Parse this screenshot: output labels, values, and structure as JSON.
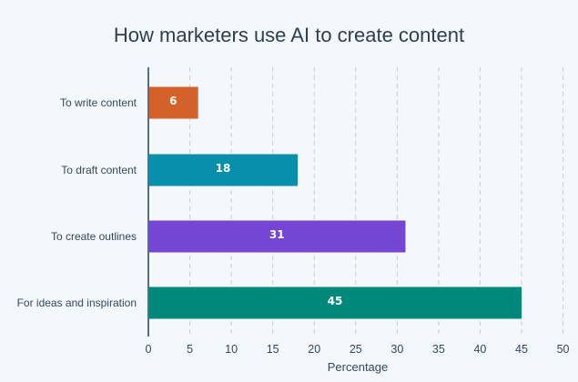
{
  "chart_data": {
    "type": "bar",
    "orientation": "horizontal",
    "title": "How marketers use AI to create content",
    "xlabel": "Percentage",
    "ylabel": "",
    "categories": [
      "To write content",
      "To draft content",
      "To create outlines",
      "For ideas and inspiration"
    ],
    "values": [
      6,
      18,
      31,
      45
    ],
    "colors": [
      "#d2622a",
      "#078fac",
      "#7545d3",
      "#00897b"
    ],
    "xlim": [
      0,
      50
    ],
    "xticks": [
      0,
      5,
      10,
      15,
      20,
      25,
      30,
      35,
      40,
      45,
      50
    ],
    "grid": true
  },
  "style": {
    "axis_color": "#516f90",
    "grid_color": "#c5ced8",
    "text_color": "#33475b"
  }
}
